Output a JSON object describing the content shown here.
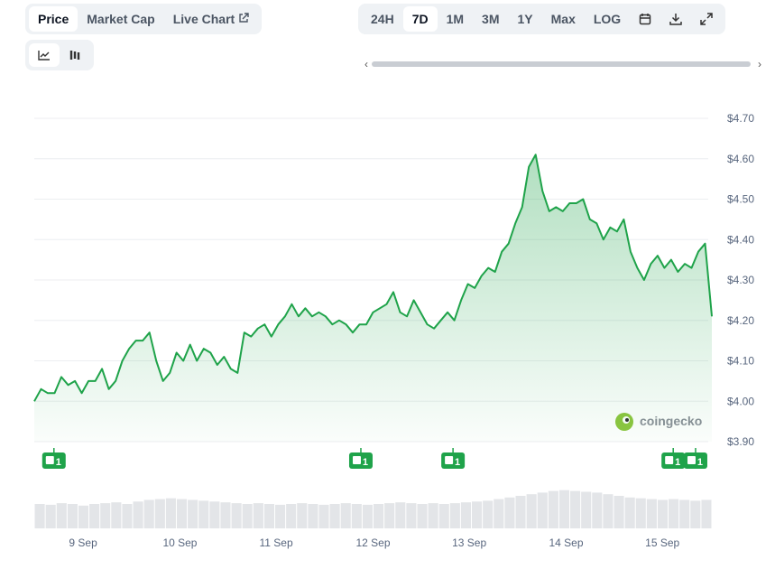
{
  "tabs": [
    "Price",
    "Market Cap",
    "Live Chart"
  ],
  "ranges": [
    "24H",
    "7D",
    "1M",
    "3M",
    "1Y",
    "Max",
    "LOG"
  ],
  "watermark": "coingecko",
  "chart_data": {
    "type": "line",
    "color": "#1fa34a",
    "values": [
      4.0,
      4.03,
      4.02,
      4.02,
      4.06,
      4.04,
      4.05,
      4.02,
      4.05,
      4.05,
      4.08,
      4.03,
      4.05,
      4.1,
      4.13,
      4.15,
      4.15,
      4.17,
      4.1,
      4.05,
      4.07,
      4.12,
      4.1,
      4.14,
      4.1,
      4.13,
      4.12,
      4.09,
      4.11,
      4.08,
      4.07,
      4.17,
      4.16,
      4.18,
      4.19,
      4.16,
      4.19,
      4.21,
      4.24,
      4.21,
      4.23,
      4.21,
      4.22,
      4.21,
      4.19,
      4.2,
      4.19,
      4.17,
      4.19,
      4.19,
      4.22,
      4.23,
      4.24,
      4.27,
      4.22,
      4.21,
      4.25,
      4.22,
      4.19,
      4.18,
      4.2,
      4.22,
      4.2,
      4.25,
      4.29,
      4.28,
      4.31,
      4.33,
      4.32,
      4.37,
      4.39,
      4.44,
      4.48,
      4.58,
      4.61,
      4.52,
      4.47,
      4.48,
      4.47,
      4.49,
      4.49,
      4.5,
      4.45,
      4.44,
      4.4,
      4.43,
      4.42,
      4.45,
      4.37,
      4.33,
      4.3,
      4.34,
      4.36,
      4.33,
      4.35,
      4.32,
      4.34,
      4.33,
      4.37,
      4.39,
      4.21
    ],
    "xlim": [
      0,
      100
    ],
    "xticks": [
      {
        "value": 7.2,
        "label": "9 Sep"
      },
      {
        "value": 21.5,
        "label": "10 Sep"
      },
      {
        "value": 35.7,
        "label": "11 Sep"
      },
      {
        "value": 50,
        "label": "12 Sep"
      },
      {
        "value": 64.2,
        "label": "13 Sep"
      },
      {
        "value": 78.5,
        "label": "14 Sep"
      },
      {
        "value": 92.7,
        "label": "15 Sep"
      }
    ],
    "ylim": [
      3.9,
      4.7
    ],
    "yticks": [
      {
        "value": 3.9,
        "label": "$3.90"
      },
      {
        "value": 4.0,
        "label": "$4.00"
      },
      {
        "value": 4.1,
        "label": "$4.10"
      },
      {
        "value": 4.2,
        "label": "$4.20"
      },
      {
        "value": 4.3,
        "label": "$4.30"
      },
      {
        "value": 4.4,
        "label": "$4.40"
      },
      {
        "value": 4.5,
        "label": "$4.50"
      },
      {
        "value": 4.6,
        "label": "$4.60"
      },
      {
        "value": 4.7,
        "label": "$4.70"
      }
    ],
    "grid": true,
    "events": [
      {
        "x": 2.9,
        "label": "1"
      },
      {
        "x": 48.2,
        "label": "1"
      },
      {
        "x": 61.8,
        "label": "1"
      },
      {
        "x": 94.3,
        "label": "1"
      },
      {
        "x": 97.6,
        "label": "1"
      }
    ],
    "volume": {
      "color": "#e3e5e8",
      "vlim": [
        0,
        50
      ],
      "values": [
        30,
        29,
        31,
        30,
        28,
        30,
        31,
        32,
        30,
        33,
        35,
        36,
        37,
        36,
        35,
        34,
        33,
        32,
        31,
        30,
        31,
        30,
        29,
        30,
        31,
        30,
        29,
        30,
        31,
        30,
        29,
        30,
        31,
        32,
        31,
        30,
        31,
        30,
        31,
        32,
        33,
        34,
        36,
        38,
        40,
        42,
        44,
        46,
        47,
        46,
        45,
        44,
        42,
        40,
        38,
        37,
        36,
        35,
        36,
        35,
        34,
        35
      ]
    }
  }
}
